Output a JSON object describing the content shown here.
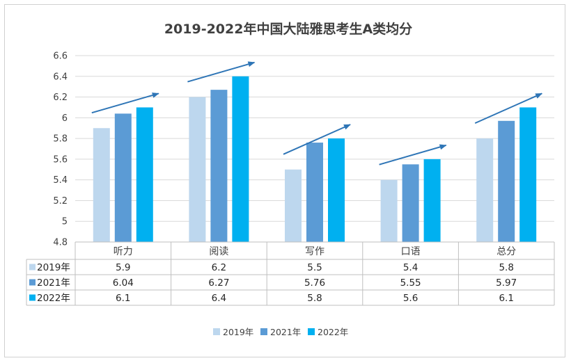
{
  "chart_data": {
    "type": "bar",
    "title": "2019-2022年中国大陆雅思考生A类均分",
    "categories": [
      "听力",
      "阅读",
      "写作",
      "口语",
      "总分"
    ],
    "series": [
      {
        "name": "2019年",
        "values": [
          5.9,
          6.2,
          5.5,
          5.4,
          5.8
        ],
        "color": "#bdd7ee"
      },
      {
        "name": "2021年",
        "values": [
          6.04,
          6.27,
          5.76,
          5.55,
          5.97
        ],
        "color": "#5b9bd5"
      },
      {
        "name": "2022年",
        "values": [
          6.1,
          6.4,
          5.8,
          5.6,
          6.1
        ],
        "color": "#00b0f0"
      }
    ],
    "ylim": [
      4.8,
      6.6
    ],
    "yticks": [
      "4.8",
      "5",
      "5.2",
      "5.4",
      "5.6",
      "5.8",
      "6",
      "6.2",
      "6.4",
      "6.6"
    ],
    "table_values": [
      [
        "5.9",
        "6.2",
        "5.5",
        "5.4",
        "5.8"
      ],
      [
        "6.04",
        "6.27",
        "5.76",
        "5.55",
        "5.97"
      ],
      [
        "6.1",
        "6.4",
        "5.8",
        "5.6",
        "6.1"
      ]
    ],
    "grid": true,
    "legend": "bottom",
    "data_table": true,
    "trend_arrow_color": "#2e75b6"
  }
}
